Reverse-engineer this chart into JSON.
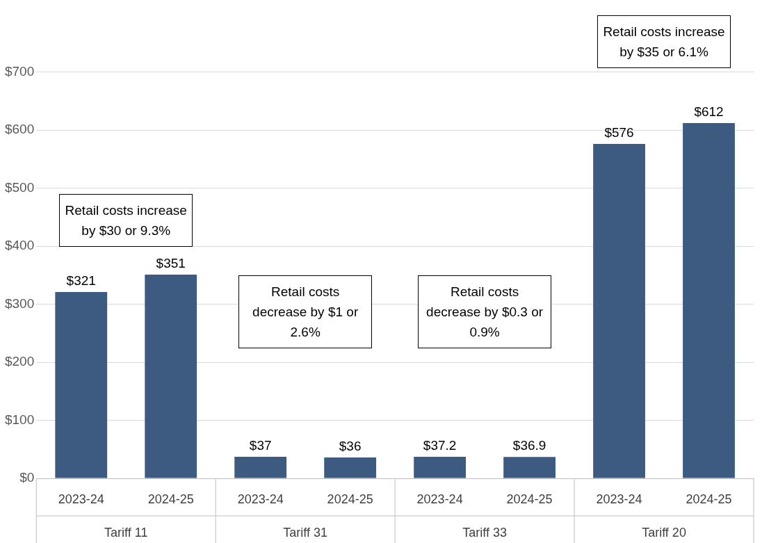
{
  "chart_data": {
    "type": "bar",
    "categories": [
      "2023-24",
      "2024-25",
      "2023-24",
      "2024-25",
      "2023-24",
      "2024-25",
      "2023-24",
      "2024-25"
    ],
    "values": [
      321,
      351,
      37,
      36,
      37.2,
      36.9,
      576,
      612
    ],
    "color": "#3d5a80",
    "value_labels": [
      "$321",
      "$351",
      "$37",
      "$36",
      "$37.2",
      "$36.9",
      "$576",
      "$612"
    ],
    "ylim": [
      0,
      800
    ],
    "yticks": [
      {
        "value": 0,
        "label": "$0"
      },
      {
        "value": 100,
        "label": "$100"
      },
      {
        "value": 200,
        "label": "$200"
      },
      {
        "value": 300,
        "label": "$300"
      },
      {
        "value": 400,
        "label": "$400"
      },
      {
        "value": 500,
        "label": "$500"
      },
      {
        "value": 600,
        "label": "$600"
      },
      {
        "value": 700,
        "label": "$700"
      }
    ],
    "grid": "y",
    "annotations": [
      "Tariff 11",
      "Tariff 31",
      "Tariff 33",
      "Tariff 20",
      "Retail costs increase by $30 or 9.3%",
      "Retail costs decrease by $1 or 2.6%",
      "Retail costs decrease by $0.3 or 0.9%",
      "Retail costs increase by $35 or 6.1%"
    ]
  }
}
